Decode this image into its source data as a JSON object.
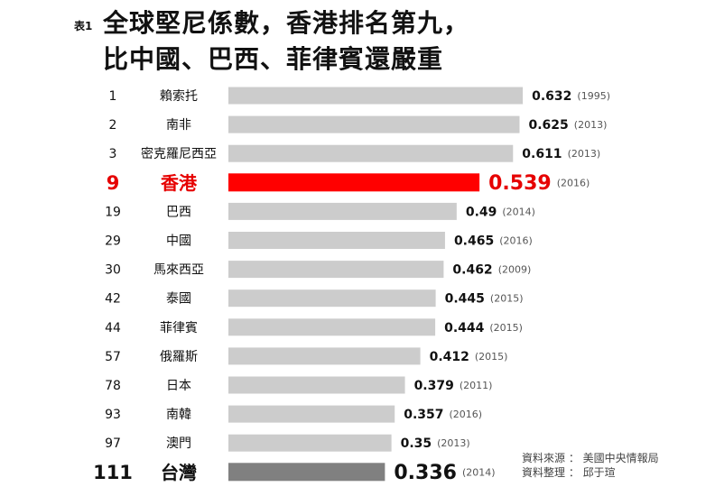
{
  "title_prefix": "表1",
  "title_line1": "全球堅尼係數，香港排名第九，",
  "title_line2": "比中國、巴西、菲律賓還嚴重",
  "source_line1": "資料來源 ： 美國中央情報局",
  "source_line2": "資料整理 ： 邱于瑄",
  "colors": {
    "default": "#cccccc",
    "highlight": "#ff0000",
    "taiwan": "#808080",
    "highlight_text": "#e60000"
  },
  "chart_data": {
    "type": "bar",
    "orientation": "horizontal",
    "title": "全球堅尼係數，香港排名第九，比中國、巴西、菲律賓還嚴重",
    "xlim": [
      0,
      0.7
    ],
    "rows": [
      {
        "rank": "1",
        "country": "賴索托",
        "value": 0.632,
        "label": "0.632",
        "year": "(1995)",
        "style": "default"
      },
      {
        "rank": "2",
        "country": "南非",
        "value": 0.625,
        "label": "0.625",
        "year": "(2013)",
        "style": "default"
      },
      {
        "rank": "3",
        "country": "密克羅尼西亞",
        "value": 0.611,
        "label": "0.611",
        "year": "(2013)",
        "style": "default"
      },
      {
        "rank": "9",
        "country": "香港",
        "value": 0.539,
        "label": "0.539",
        "year": "(2016)",
        "style": "highlight"
      },
      {
        "rank": "19",
        "country": "巴西",
        "value": 0.49,
        "label": "0.49",
        "year": "(2014)",
        "style": "default"
      },
      {
        "rank": "29",
        "country": "中國",
        "value": 0.465,
        "label": "0.465",
        "year": "(2016)",
        "style": "default"
      },
      {
        "rank": "30",
        "country": "馬來西亞",
        "value": 0.462,
        "label": "0.462",
        "year": "(2009)",
        "style": "default"
      },
      {
        "rank": "42",
        "country": "泰國",
        "value": 0.445,
        "label": "0.445",
        "year": "(2015)",
        "style": "default"
      },
      {
        "rank": "44",
        "country": "菲律賓",
        "value": 0.444,
        "label": "0.444",
        "year": "(2015)",
        "style": "default"
      },
      {
        "rank": "57",
        "country": "俄羅斯",
        "value": 0.412,
        "label": "0.412",
        "year": "(2015)",
        "style": "default"
      },
      {
        "rank": "78",
        "country": "日本",
        "value": 0.379,
        "label": "0.379",
        "year": "(2011)",
        "style": "default"
      },
      {
        "rank": "93",
        "country": "南韓",
        "value": 0.357,
        "label": "0.357",
        "year": "(2016)",
        "style": "default"
      },
      {
        "rank": "97",
        "country": "澳門",
        "value": 0.35,
        "label": "0.35",
        "year": "(2013)",
        "style": "default"
      },
      {
        "rank": "111",
        "country": "台灣",
        "value": 0.336,
        "label": "0.336",
        "year": "(2014)",
        "style": "taiwan"
      }
    ]
  }
}
